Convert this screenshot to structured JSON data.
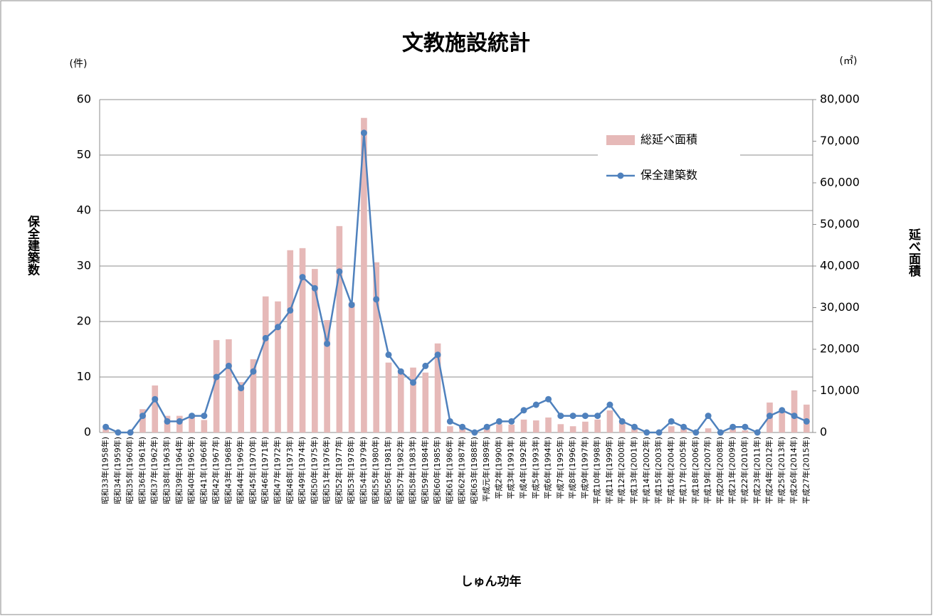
{
  "chart_data": {
    "type": "combo",
    "title": "文教施設統計",
    "y_label": "保全建築数",
    "y2_label": "延べ面積",
    "y_unit": "(件)",
    "y2_unit": "(㎡)",
    "x_label": "しゅん功年",
    "categories": [
      "昭和33年(1958年)",
      "昭和34年(1959年)",
      "昭和35年(1960年)",
      "昭和36年(1961年)",
      "昭和37年(1962年)",
      "昭和38年(1963年)",
      "昭和39年(1964年)",
      "昭和40年(1965年)",
      "昭和41年(1966年)",
      "昭和42年(1967年)",
      "昭和43年(1968年)",
      "昭和44年(1969年)",
      "昭和45年(1970年)",
      "昭和46年(1971年)",
      "昭和47年(1972年)",
      "昭和48年(1973年)",
      "昭和49年(1974年)",
      "昭和50年(1975年)",
      "昭和51年(1976年)",
      "昭和52年(1977年)",
      "昭和53年(1978年)",
      "昭和54年(1979年)",
      "昭和55年(1980年)",
      "昭和56年(1981年)",
      "昭和57年(1982年)",
      "昭和58年(1983年)",
      "昭和59年(1984年)",
      "昭和60年(1985年)",
      "昭和61年(1986年)",
      "昭和62年(1987年)",
      "昭和63年(1988年)",
      "平成元年(1989年)",
      "平成2年(1990年)",
      "平成3年(1991年)",
      "平成4年(1992年)",
      "平成5年(1993年)",
      "平成6年(1994年)",
      "平成7年(1995年)",
      "平成8年(1996年)",
      "平成9年(1997年)",
      "平成10年(1998年)",
      "平成11年(1999年)",
      "平成12年(2000年)",
      "平成13年(2001年)",
      "平成14年(2002年)",
      "平成15年(2003年)",
      "平成16年(2004年)",
      "平成17年(2005年)",
      "平成18年(2006年)",
      "平成19年(2007年)",
      "平成20年(2008年)",
      "平成21年(2009年)",
      "平成22年(2010年)",
      "平成23年(2011年)",
      "平成24年(2012年)",
      "平成25年(2013年)",
      "平成26年(2014年)",
      "平成27年(2015年)"
    ],
    "series": [
      {
        "name": "総延べ面積",
        "type": "bar",
        "axis": "y2",
        "color": "#e6b9b8",
        "values": [
          1000,
          0,
          300,
          5600,
          11300,
          4000,
          4000,
          4300,
          3000,
          22200,
          22400,
          12100,
          17600,
          32700,
          31500,
          43800,
          44300,
          39300,
          27000,
          49600,
          31300,
          75600,
          40900,
          16800,
          15000,
          15600,
          14400,
          21400,
          1500,
          1400,
          0,
          1000,
          2000,
          1900,
          3100,
          2900,
          3600,
          2000,
          1500,
          2600,
          3100,
          5300,
          2400,
          900,
          0,
          0,
          1500,
          900,
          0,
          1000,
          0,
          900,
          500,
          0,
          7200,
          5500,
          10100,
          6700
        ]
      },
      {
        "name": "保全建築数",
        "type": "line",
        "color": "#4f81bd",
        "values": [
          1,
          0,
          0,
          3,
          6,
          2,
          2,
          3,
          3,
          10,
          12,
          8,
          11,
          17,
          19,
          22,
          28,
          26,
          16,
          29,
          23,
          54,
          24,
          14,
          11,
          9,
          12,
          14,
          2,
          1,
          0,
          1,
          2,
          2,
          4,
          5,
          6,
          3,
          3,
          3,
          3,
          5,
          2,
          1,
          0,
          0,
          2,
          1,
          0,
          3,
          0,
          1,
          1,
          0,
          3,
          4,
          3,
          2
        ]
      }
    ],
    "ylim": [
      0,
      60
    ],
    "yticks": [
      0,
      10,
      20,
      30,
      40,
      50,
      60
    ],
    "y2lim": [
      0,
      80000
    ],
    "y2ticks": [
      {
        "value": 0,
        "label": "0"
      },
      {
        "value": 10000,
        "label": "10,000"
      },
      {
        "value": 20000,
        "label": "20,000"
      },
      {
        "value": 30000,
        "label": "30,000"
      },
      {
        "value": 40000,
        "label": "40,000"
      },
      {
        "value": 50000,
        "label": "50,000"
      },
      {
        "value": 60000,
        "label": "60,000"
      },
      {
        "value": 70000,
        "label": "70,000"
      },
      {
        "value": 80000,
        "label": "80,000"
      }
    ],
    "grid": true,
    "legend": "upper right"
  }
}
